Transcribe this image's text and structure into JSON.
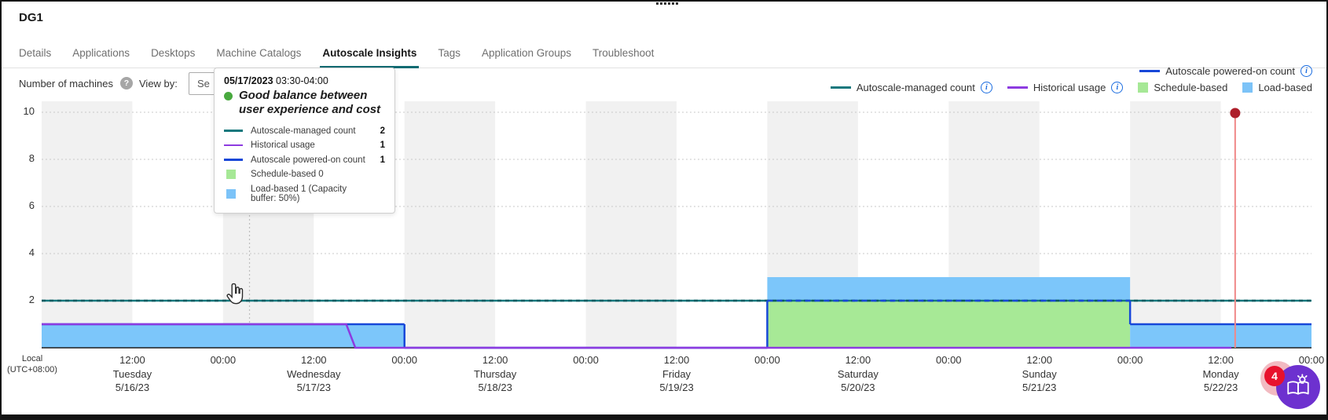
{
  "window": {
    "top_dots_count": 6
  },
  "header": {
    "title": "DG1"
  },
  "tabs": {
    "items": [
      {
        "label": "Details",
        "active": false
      },
      {
        "label": "Applications",
        "active": false
      },
      {
        "label": "Desktops",
        "active": false
      },
      {
        "label": "Machine Catalogs",
        "active": false
      },
      {
        "label": "Autoscale Insights",
        "active": true
      },
      {
        "label": "Tags",
        "active": false
      },
      {
        "label": "Application Groups",
        "active": false
      },
      {
        "label": "Troubleshoot",
        "active": false
      }
    ]
  },
  "toolbar": {
    "y_axis_title": "Number of machines",
    "help_icon_glyph": "?",
    "view_by_label": "View by:",
    "select_visible_text": "Se"
  },
  "colors": {
    "managed": "#15787d",
    "managed_dash": "#0b5b61",
    "historical": "#8d3be0",
    "powered": "#1747d8",
    "schedule_fill": "#a7e996",
    "schedule_swatch": "#a6e896",
    "load_fill": "#7cc6fa",
    "load_swatch": "#7cc3f8",
    "tab_accent": "#0f6b72",
    "status_green": "#48a93e",
    "now_line": "#ef8888",
    "now_dot": "#ae1f2b",
    "info_blue": "#1a6ce0",
    "fab_purple": "#6d31cf",
    "badge_red": "#e8112d",
    "badge_halo": "#f2bac1",
    "band": "#f1f1f1"
  },
  "legend": {
    "rows": [
      [
        {
          "label": "Autoscale powered-on count",
          "swatch": "line",
          "color": "#1747d8",
          "info": true
        }
      ],
      [
        {
          "label": "Autoscale-managed count",
          "swatch": "line",
          "color": "#15787d",
          "info": true
        },
        {
          "label": "Historical usage",
          "swatch": "line",
          "color": "#8d3be0",
          "info": true
        },
        {
          "label": "Schedule-based",
          "swatch": "square",
          "color": "#a6e896",
          "info": false
        },
        {
          "label": "Load-based",
          "swatch": "square",
          "color": "#7cc3f8",
          "info": false
        }
      ]
    ],
    "info_glyph": "i"
  },
  "tooltip": {
    "date": "05/17/2023",
    "time_range": "03:30-04:00",
    "headline": "Good balance between user experience and cost",
    "rows": [
      {
        "swatch": "line",
        "color": "#15787d",
        "label": "Autoscale-managed count",
        "value": "2"
      },
      {
        "swatch": "line",
        "color": "#8d3be0",
        "label": "Historical usage",
        "value": "1"
      },
      {
        "swatch": "line",
        "color": "#1747d8",
        "label": "Autoscale powered-on count",
        "value": "1"
      },
      {
        "swatch": "square",
        "color": "#a6e896",
        "label": "Schedule-based 0",
        "value": ""
      },
      {
        "swatch": "square",
        "color": "#7cc3f8",
        "label": "Load-based 1 (Capacity buffer: 50%)",
        "value": ""
      }
    ]
  },
  "axis": {
    "tz_line1": "Local",
    "tz_line2": "(UTC+08:00)"
  },
  "chart_data": {
    "type": "area",
    "title": "Number of machines",
    "ylim": [
      0,
      10
    ],
    "yticks": [
      2,
      4,
      6,
      8,
      10
    ],
    "x_hours_total": 168,
    "x_tick_every_hours": 12,
    "x_tick_labels_alternate": [
      "12:00",
      "00:00"
    ],
    "days": [
      {
        "name": "Tuesday",
        "date": "5/16/23"
      },
      {
        "name": "Wednesday",
        "date": "5/17/23"
      },
      {
        "name": "Thursday",
        "date": "5/18/23"
      },
      {
        "name": "Friday",
        "date": "5/19/23"
      },
      {
        "name": "Saturday",
        "date": "5/20/23"
      },
      {
        "name": "Sunday",
        "date": "5/21/23"
      },
      {
        "name": "Monday",
        "date": "5/22/23"
      }
    ],
    "grid": "dotted horizontal, alternating 12h background bands",
    "band_color": "#f1f1f1",
    "series": [
      {
        "name": "Autoscale-managed count",
        "type": "line",
        "color": "#15787d",
        "overlay_dash_color": "#0b5b61",
        "points": [
          [
            0,
            2
          ],
          [
            168,
            2
          ]
        ]
      },
      {
        "name": "Schedule-based",
        "type": "area",
        "color": "#a7e996",
        "segments": [
          {
            "from": 96,
            "to": 144,
            "y0": 0,
            "y1": 2
          }
        ]
      },
      {
        "name": "Load-based",
        "type": "area",
        "color": "#7cc6fa",
        "segments": [
          {
            "from": 0,
            "to": 48,
            "y0": 0,
            "y1": 1
          },
          {
            "from": 96,
            "to": 144,
            "y0": 2,
            "y1": 3
          },
          {
            "from": 144,
            "to": 168,
            "y0": 0,
            "y1": 1
          }
        ]
      },
      {
        "name": "Autoscale powered-on count",
        "type": "line",
        "color": "#1747d8",
        "steps": [
          [
            0,
            1
          ],
          [
            48,
            1
          ],
          [
            48,
            0
          ],
          [
            96,
            0
          ],
          [
            96,
            2
          ],
          [
            144,
            2
          ],
          [
            144,
            1
          ],
          [
            168,
            1
          ]
        ],
        "dashed_span": [
          96,
          144
        ]
      },
      {
        "name": "Historical usage",
        "type": "line",
        "color": "#8d3be0",
        "points": [
          [
            0,
            1
          ],
          [
            40.3,
            1
          ],
          [
            41.5,
            0
          ],
          [
            157.4,
            0
          ]
        ]
      }
    ],
    "now_marker": {
      "t": 157.9,
      "line_color": "#ef8888",
      "dot_color": "#ae1f2b"
    },
    "hover_marker": {
      "t": 27.5,
      "label": "05/17/2023 03:30-04:00"
    }
  },
  "fab": {
    "badge": "4"
  }
}
